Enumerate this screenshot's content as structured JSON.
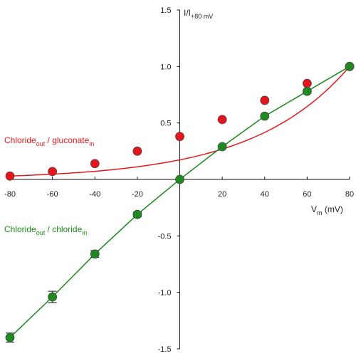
{
  "chart_data": {
    "type": "line",
    "xlabel": {
      "main": "V",
      "sub": "m",
      "rest": " (mV)"
    },
    "ylabel": {
      "main": "I/I",
      "sub": "+80 mV"
    },
    "xlim": [
      -80,
      80
    ],
    "ylim": [
      -1.5,
      1.5
    ],
    "x_ticks": [
      -80,
      -60,
      -40,
      -20,
      0,
      20,
      40,
      60,
      80
    ],
    "x_tick_labels": [
      "-80",
      "-60",
      "-40",
      "-20",
      "",
      "20",
      "40",
      "60",
      "80"
    ],
    "y_ticks": [
      -1.5,
      -1.0,
      -0.5,
      0,
      0.5,
      1.0,
      1.5
    ],
    "y_tick_labels": [
      "-1.5",
      "-1.0",
      "-0.5",
      "",
      "0.5",
      "1.0",
      "1.5"
    ],
    "grid": false,
    "series": [
      {
        "name": {
          "a": "Chloride",
          "a_sub": "out",
          "b": " / gluconate",
          "b_sub": "in"
        },
        "color": "#e31a1c",
        "marker_color": "#e8141c",
        "fit": "exponential",
        "x": [
          -80,
          -60,
          -40,
          -20,
          0,
          20,
          40,
          60,
          80
        ],
        "y": [
          0.03,
          0.07,
          0.14,
          0.25,
          0.38,
          0.53,
          0.7,
          0.85,
          1.0
        ]
      },
      {
        "name": {
          "a": "Chloride",
          "a_sub": "out",
          "b": " / chloride",
          "b_sub": "in"
        },
        "color": "#1a8a1a",
        "marker_color": "#1e8a1e",
        "fit": "linear",
        "x": [
          -80,
          -60,
          -40,
          -20,
          0,
          20,
          40,
          60,
          80
        ],
        "y": [
          -1.4,
          -1.04,
          -0.66,
          -0.31,
          0.0,
          0.29,
          0.56,
          0.78,
          1.0
        ],
        "error": [
          0.04,
          0.05,
          0.03,
          0.02,
          0.0,
          0.0,
          0.0,
          0.0,
          0.0
        ]
      }
    ]
  }
}
